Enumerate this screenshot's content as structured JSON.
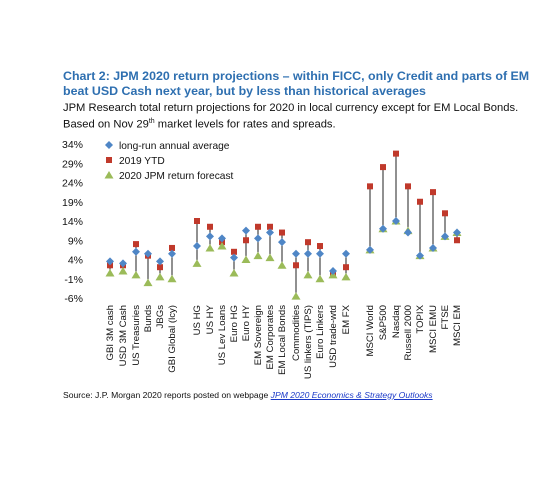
{
  "title": "Chart 2:  JPM 2020 return projections – within FICC, only Credit and parts of EM beat USD Cash next year, but by less than historical averages",
  "subtitle_part1": "JPM Research total return projections for 2020 in local currency except for EM Local Bonds. Based on Nov 29",
  "subtitle_sup": "th",
  "subtitle_part2": " market levels for rates and spreads.",
  "source_text": "Source: J.P. Morgan 2020 reports posted on webpage ",
  "source_link": "JPM 2020 Economics & Strategy Outlooks",
  "colors": {
    "long_run": "#4f86c6",
    "ytd": "#c0392b",
    "forecast": "#9bbb59",
    "range_line": "#222222",
    "grid": "#d9d9d9"
  },
  "chart_data": {
    "type": "scatter",
    "ylim": [
      -6,
      34
    ],
    "yticks": [
      "-6%",
      "-1%",
      "4%",
      "9%",
      "14%",
      "19%",
      "24%",
      "29%",
      "34%"
    ],
    "ytick_values": [
      -6,
      -1,
      4,
      9,
      14,
      19,
      24,
      29,
      34
    ],
    "categories": [
      "GBI 3M cash",
      "USD 3M Cash",
      "US Treasuries",
      "Bunds",
      "JBGs",
      "GBI Global (lcy)",
      "US HG",
      "US HY",
      "US Lev Loans",
      "Euro HG",
      "Euro HY",
      "EM Sovereign",
      "EM Corporates",
      "EM Local Bonds",
      "Commodities",
      "US linkers (TIPS)",
      "Euro Linkers",
      "USD trade-wtd",
      "EM FX",
      "MSCI World",
      "S&P500",
      "Nasdaq",
      "Russell 2000",
      "TOPIX",
      "MSCI EMU",
      "FTSE",
      "MSCI EM"
    ],
    "groups": [
      [
        0,
        5
      ],
      [
        6,
        18
      ],
      [
        19,
        26
      ]
    ],
    "series": [
      {
        "name": "long-run annual average",
        "marker": "diamond",
        "values": [
          3.5,
          3.0,
          6.0,
          5.5,
          3.5,
          5.5,
          7.5,
          10.0,
          9.5,
          4.5,
          11.5,
          9.5,
          11.0,
          8.5,
          5.5,
          5.5,
          5.5,
          1.0,
          5.5,
          6.5,
          12.0,
          14.0,
          11.0,
          5.0,
          7.0,
          10.0,
          11.0
        ]
      },
      {
        "name": "2019 YTD",
        "marker": "square",
        "values": [
          2.5,
          2.5,
          8.0,
          5.0,
          2.0,
          7.0,
          14.0,
          12.5,
          8.5,
          6.0,
          9.0,
          12.5,
          12.5,
          11.0,
          2.5,
          8.5,
          7.5,
          0.5,
          2.0,
          23.0,
          28.0,
          31.5,
          23.0,
          19.0,
          21.5,
          16.0,
          9.0
        ]
      },
      {
        "name": "2020 JPM return forecast",
        "marker": "triangle",
        "values": [
          0.5,
          1.0,
          0.0,
          -2.0,
          -0.5,
          -1.0,
          3.0,
          7.0,
          7.5,
          0.5,
          4.0,
          5.0,
          4.5,
          2.5,
          -5.5,
          0.0,
          -1.0,
          0.0,
          -0.5,
          6.5,
          12.0,
          14.0,
          11.5,
          5.0,
          7.0,
          10.0,
          11.0
        ]
      }
    ],
    "legend_position": "top-left",
    "grid": false
  }
}
